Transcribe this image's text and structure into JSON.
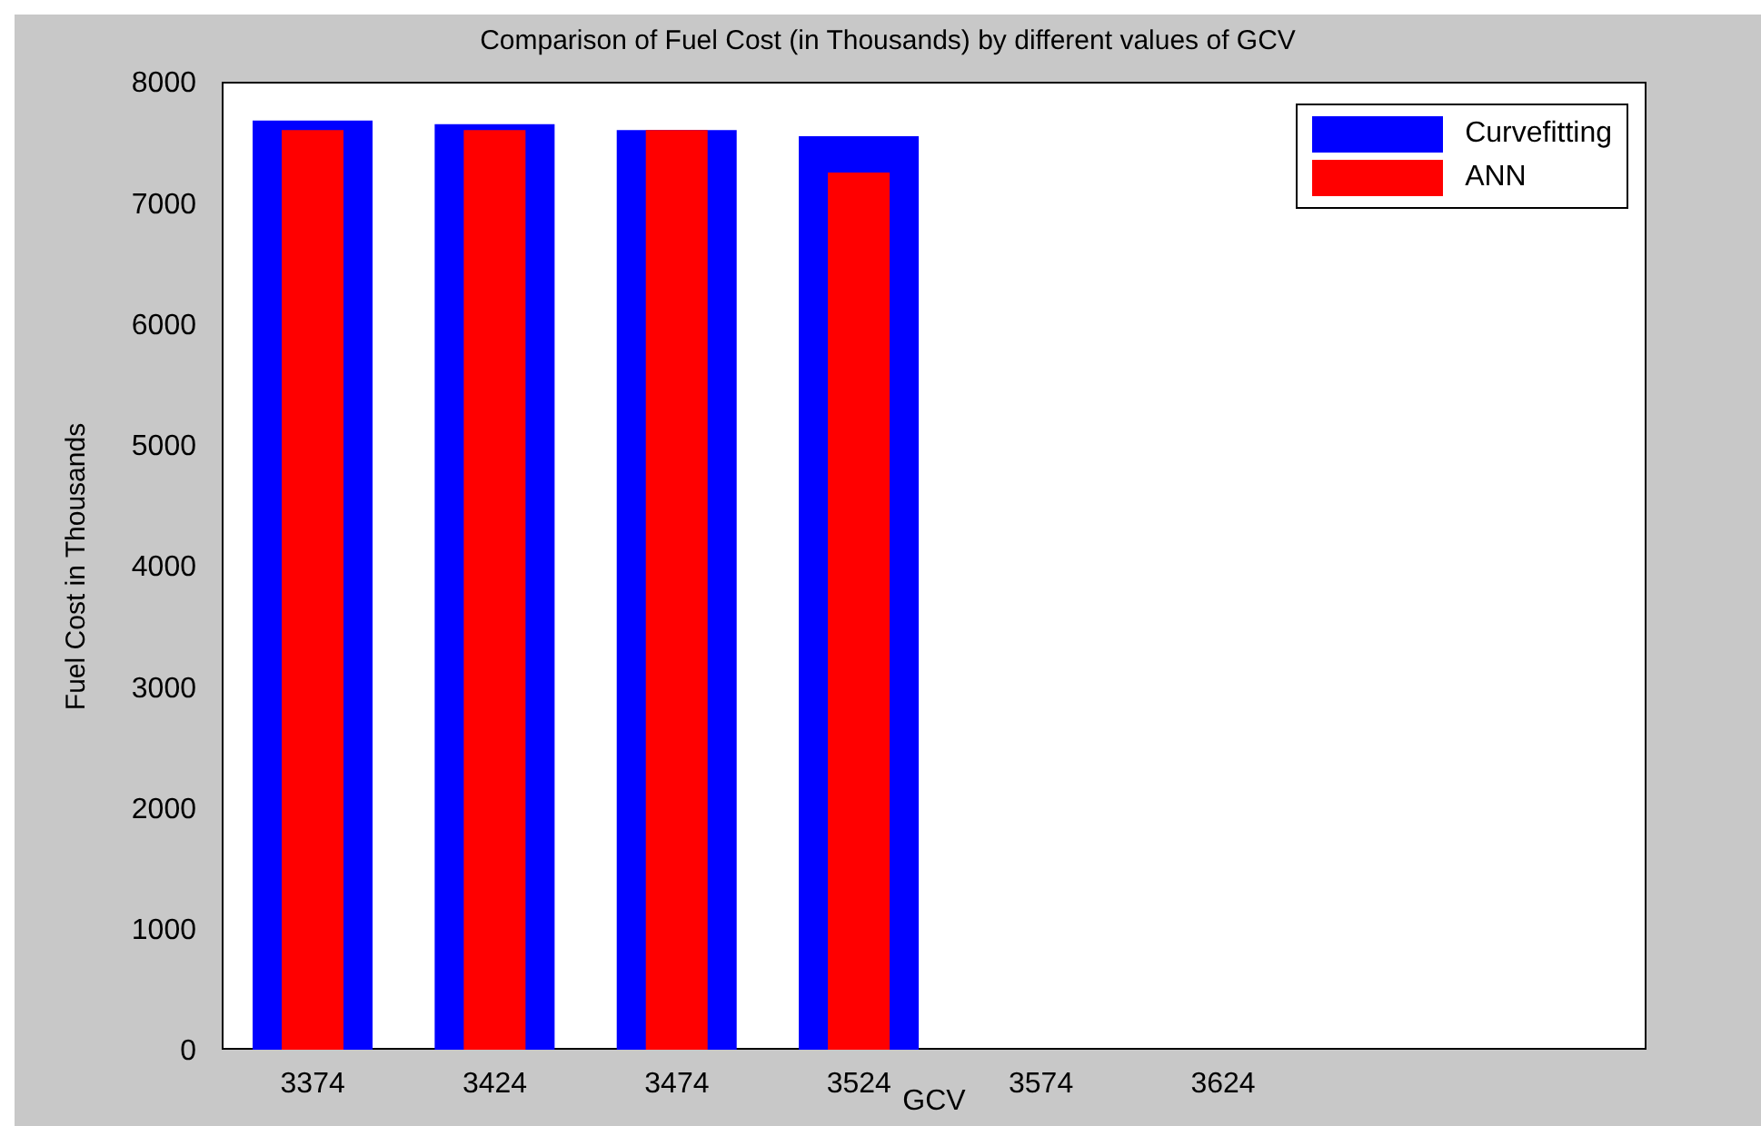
{
  "chart_data": {
    "type": "bar",
    "title": "Comparison of Fuel Cost (in Thousands) by different values of GCV",
    "xlabel": "GCV",
    "ylabel": "Fuel Cost in Thousands",
    "categories": [
      "3374",
      "3424",
      "3474",
      "3524",
      "3574",
      "3624"
    ],
    "series": [
      {
        "name": "Curvefitting",
        "color": "#0000ff",
        "values": [
          7680,
          7650,
          7600,
          7550,
          null,
          null
        ]
      },
      {
        "name": "ANN",
        "color": "#ff0000",
        "values": [
          7600,
          7600,
          7600,
          7250,
          null,
          null
        ]
      }
    ],
    "ylim": [
      0,
      8000
    ],
    "yticks": [
      0,
      1000,
      2000,
      3000,
      4000,
      5000,
      6000,
      7000,
      8000
    ],
    "legend": "top right"
  }
}
